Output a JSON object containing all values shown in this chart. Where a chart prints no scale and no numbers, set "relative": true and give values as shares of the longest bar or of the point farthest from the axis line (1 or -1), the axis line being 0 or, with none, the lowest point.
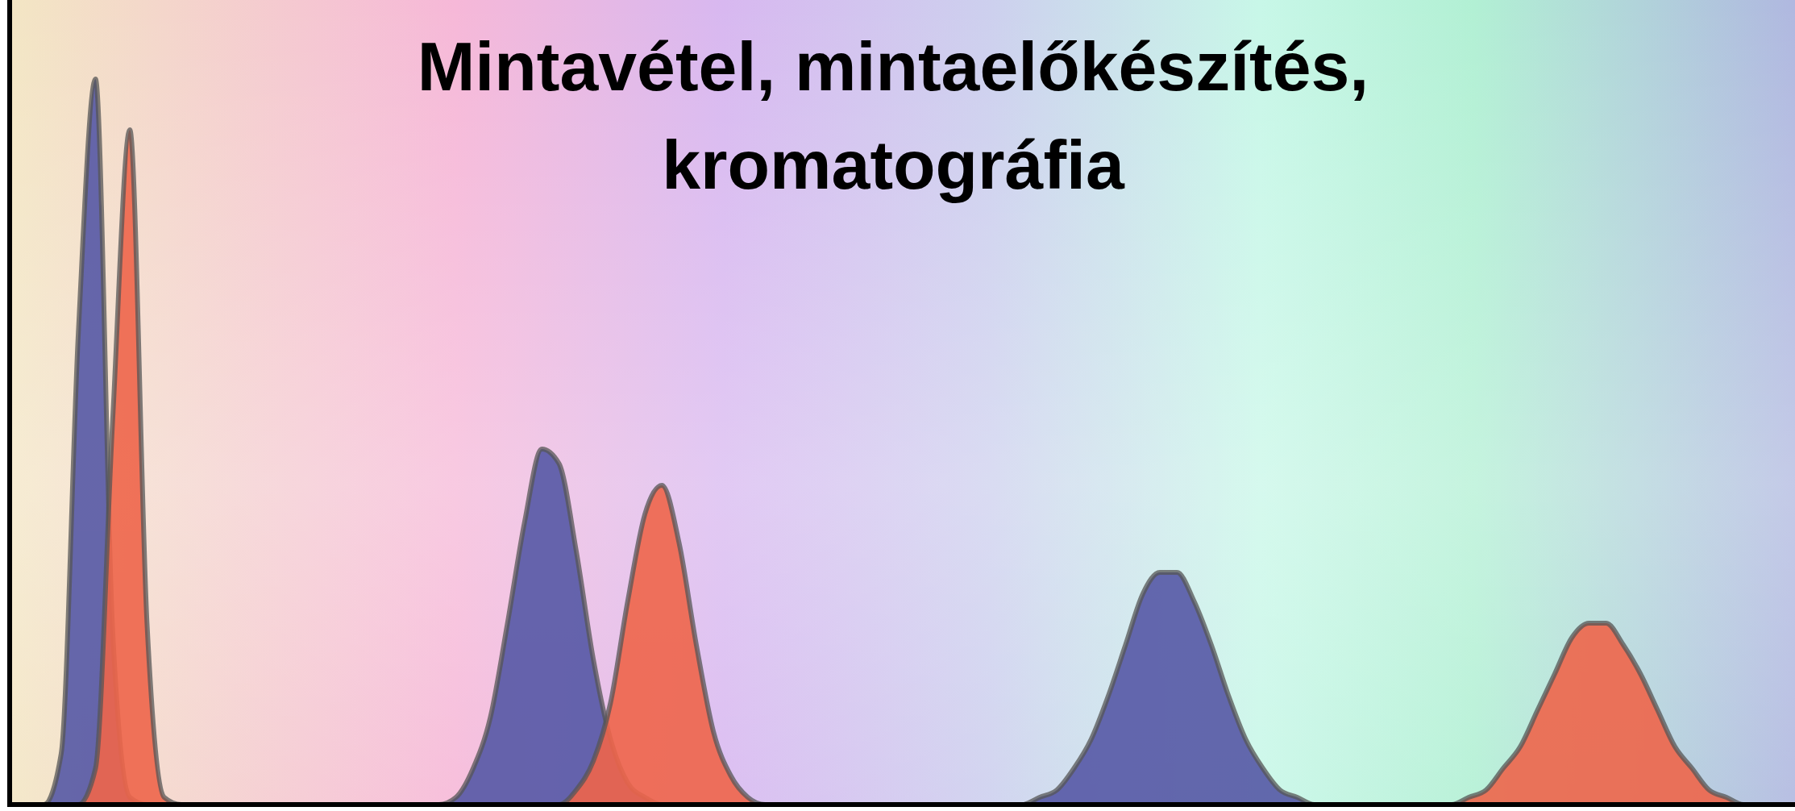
{
  "chart_data": {
    "type": "area",
    "title": "Mintavétel, mintaelőkészítés, kromatográfia",
    "relative": true,
    "categories": [
      null,
      null,
      null,
      null,
      null,
      null,
      null,
      null,
      null,
      null,
      null,
      null,
      null,
      null,
      null,
      null,
      null,
      null,
      null,
      null,
      null,
      null,
      null,
      null,
      null,
      null,
      null,
      null,
      null,
      null,
      null,
      null,
      null,
      null,
      null,
      null,
      null,
      null,
      null,
      null,
      null,
      null,
      null,
      null,
      null,
      null,
      null,
      null,
      null,
      null,
      null,
      null,
      null,
      null,
      null,
      null,
      null,
      null,
      null,
      null,
      null,
      null,
      null,
      null,
      null,
      null,
      null,
      null,
      null,
      null,
      null,
      null,
      null,
      null,
      null,
      null,
      null,
      null,
      null,
      null,
      null,
      null,
      null,
      null,
      null,
      null,
      null,
      null,
      null,
      null,
      null,
      null,
      null,
      null,
      null,
      null,
      null,
      null,
      null,
      null,
      null,
      null,
      null,
      null,
      null
    ],
    "series": [
      {
        "color": "#5558a5",
        "values": [
          0,
          0,
          0,
          0.07,
          0.65,
          1,
          0.24,
          0.01,
          0,
          0,
          0,
          0,
          0,
          0,
          0,
          0,
          0,
          0,
          0,
          0,
          0,
          0,
          0,
          0,
          0,
          0,
          0.01,
          0.05,
          0.12,
          0.25,
          0.39,
          0.49,
          0.47,
          0.35,
          0.2,
          0.09,
          0.03,
          0.01,
          0,
          0,
          0,
          0,
          0,
          0,
          0,
          0,
          0,
          0,
          0,
          0,
          0,
          0,
          0,
          0,
          0,
          0,
          0,
          0,
          0,
          0,
          0.01,
          0.02,
          0.05,
          0.09,
          0.15,
          0.22,
          0.29,
          0.32,
          0.32,
          0.28,
          0.22,
          0.15,
          0.09,
          0.05,
          0.02,
          0.01,
          0,
          0,
          0,
          0,
          0,
          0,
          0,
          0,
          0,
          0,
          0,
          0,
          0,
          0,
          0,
          0,
          0,
          0,
          0,
          0,
          0,
          0,
          0,
          0,
          0,
          0,
          0,
          0,
          0
        ]
      },
      {
        "color": "#ee654a",
        "values": [
          0,
          0,
          0,
          0,
          0,
          0.05,
          0.53,
          0.93,
          0.25,
          0.01,
          0,
          0,
          0,
          0,
          0,
          0,
          0,
          0,
          0,
          0,
          0,
          0,
          0,
          0,
          0,
          0,
          0,
          0,
          0,
          0,
          0,
          0,
          0,
          0.02,
          0.06,
          0.14,
          0.28,
          0.4,
          0.44,
          0.36,
          0.22,
          0.1,
          0.04,
          0.01,
          0,
          0,
          0,
          0,
          0,
          0,
          0,
          0,
          0,
          0,
          0,
          0,
          0,
          0,
          0,
          0,
          0,
          0,
          0,
          0,
          0,
          0,
          0,
          0,
          0,
          0,
          0,
          0,
          0,
          0,
          0,
          0,
          0,
          0,
          0,
          0,
          0,
          0,
          0,
          0,
          0,
          0.01,
          0.02,
          0.05,
          0.08,
          0.13,
          0.18,
          0.23,
          0.25,
          0.25,
          0.22,
          0.18,
          0.13,
          0.08,
          0.05,
          0.02,
          0.01,
          0,
          0,
          0,
          0
        ]
      }
    ]
  }
}
